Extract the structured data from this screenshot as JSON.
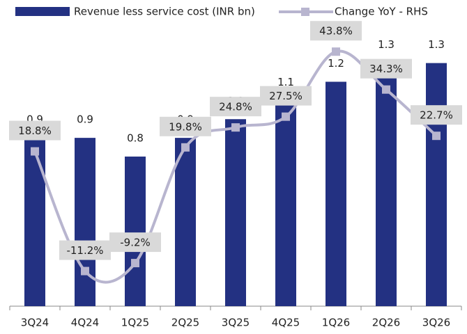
{
  "chart_data": {
    "type": "bar",
    "categories": [
      "3Q24",
      "4Q24",
      "1Q25",
      "2Q25",
      "3Q25",
      "4Q25",
      "1Q26",
      "2Q26",
      "3Q26"
    ],
    "series": [
      {
        "name": "Revenue less service cost (INR bn)",
        "type": "bar",
        "color": "#233182",
        "values": [
          0.9,
          0.9,
          0.8,
          0.9,
          1.0,
          1.1,
          1.2,
          1.3,
          1.3
        ],
        "value_labels": [
          "0.9",
          "0.9",
          "0.8",
          "0.9",
          "1.0",
          "1.1",
          "1.2",
          "1.3",
          "1.3"
        ]
      },
      {
        "name": "Change YoY - RHS",
        "type": "line",
        "axis": "y2",
        "color": "#b8b5cf",
        "values": [
          18.8,
          -11.2,
          -9.2,
          19.8,
          24.8,
          27.5,
          43.8,
          34.3,
          22.7
        ],
        "value_labels": [
          "18.8%",
          "-11.2%",
          "-9.2%",
          "19.8%",
          "24.8%",
          "27.5%",
          "43.8%",
          "34.3%",
          "22.7%"
        ]
      }
    ],
    "ylim": [
      0,
      1.6
    ],
    "y2lim": [
      -20,
      55
    ],
    "legend": "top"
  }
}
